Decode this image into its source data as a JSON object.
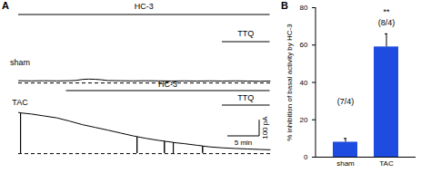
{
  "chart_data": [
    {
      "type": "line",
      "panel": "A",
      "title": "sham",
      "color": "#000000",
      "x": [
        0,
        2,
        4,
        6,
        8,
        9,
        10,
        11,
        12,
        13,
        14,
        16,
        18,
        20,
        22,
        24,
        26,
        28,
        30,
        32,
        34,
        36,
        38,
        39.5
      ],
      "values": [
        14,
        13,
        14,
        13,
        14,
        16,
        22,
        24,
        23,
        20,
        15,
        14,
        13,
        14,
        13,
        12,
        13,
        12,
        13,
        12,
        13,
        12,
        11,
        12
      ],
      "xlim": [
        0,
        40
      ],
      "ylim": [
        -5,
        203
      ],
      "tick_labels": false,
      "baseline": {
        "value": 0,
        "line_style": "dashed"
      },
      "annotations": [
        {
          "text": "HC-3",
          "x": [
            0,
            39.5
          ]
        },
        {
          "text": "TTQ",
          "x": [
            32,
            39.5
          ]
        }
      ]
    },
    {
      "type": "line",
      "panel": "",
      "title": "TAC",
      "color": "#000000",
      "x": [
        0,
        0.3,
        0.3,
        0.3,
        2,
        4,
        6,
        8,
        10,
        12,
        14,
        16,
        18,
        18.6,
        18.6,
        18.6,
        20,
        22,
        22.9,
        22.9,
        22.9,
        24.3,
        24.3,
        24.3,
        26,
        28,
        28.9,
        28.9,
        28.9,
        30,
        32,
        34,
        36,
        38,
        39.5
      ],
      "values": [
        255,
        254,
        2,
        253,
        246,
        234,
        222,
        202,
        180,
        163,
        146,
        128,
        110,
        106,
        3,
        105,
        95,
        82,
        78,
        4,
        77,
        70,
        3,
        69,
        62,
        52,
        48,
        5,
        47,
        42,
        36,
        32,
        29,
        26,
        24
      ],
      "xlim": [
        0,
        40
      ],
      "ylim": [
        -5,
        265
      ],
      "tick_labels": false,
      "baseline": {
        "value": 0,
        "line_style": "dashed"
      },
      "annotations": [
        {
          "text": "HC-3",
          "x": [
            7.5,
            39.5
          ]
        },
        {
          "text": "TTQ",
          "x": [
            32,
            39.5
          ]
        }
      ],
      "scale_bar": {
        "x": 5,
        "x_label": "5 min",
        "y": 100,
        "y_label": "100 pA"
      }
    },
    {
      "type": "bar",
      "panel": "B",
      "categories": [
        "sham",
        "TAC"
      ],
      "values": [
        8,
        59
      ],
      "errors": [
        2,
        7
      ],
      "color": "#1f4ce0",
      "ylim": [
        0,
        80
      ],
      "yticks": [
        0,
        20,
        40,
        60,
        80
      ],
      "ylabel": "% inhibition of basal activity by HC-3",
      "annotations": [
        {
          "text": "(7/4)",
          "x": "sham",
          "y": 30
        },
        {
          "text": "**",
          "x": "TAC",
          "y": 78
        },
        {
          "text": "(8/4)",
          "x": "TAC",
          "y": 72
        }
      ]
    }
  ]
}
